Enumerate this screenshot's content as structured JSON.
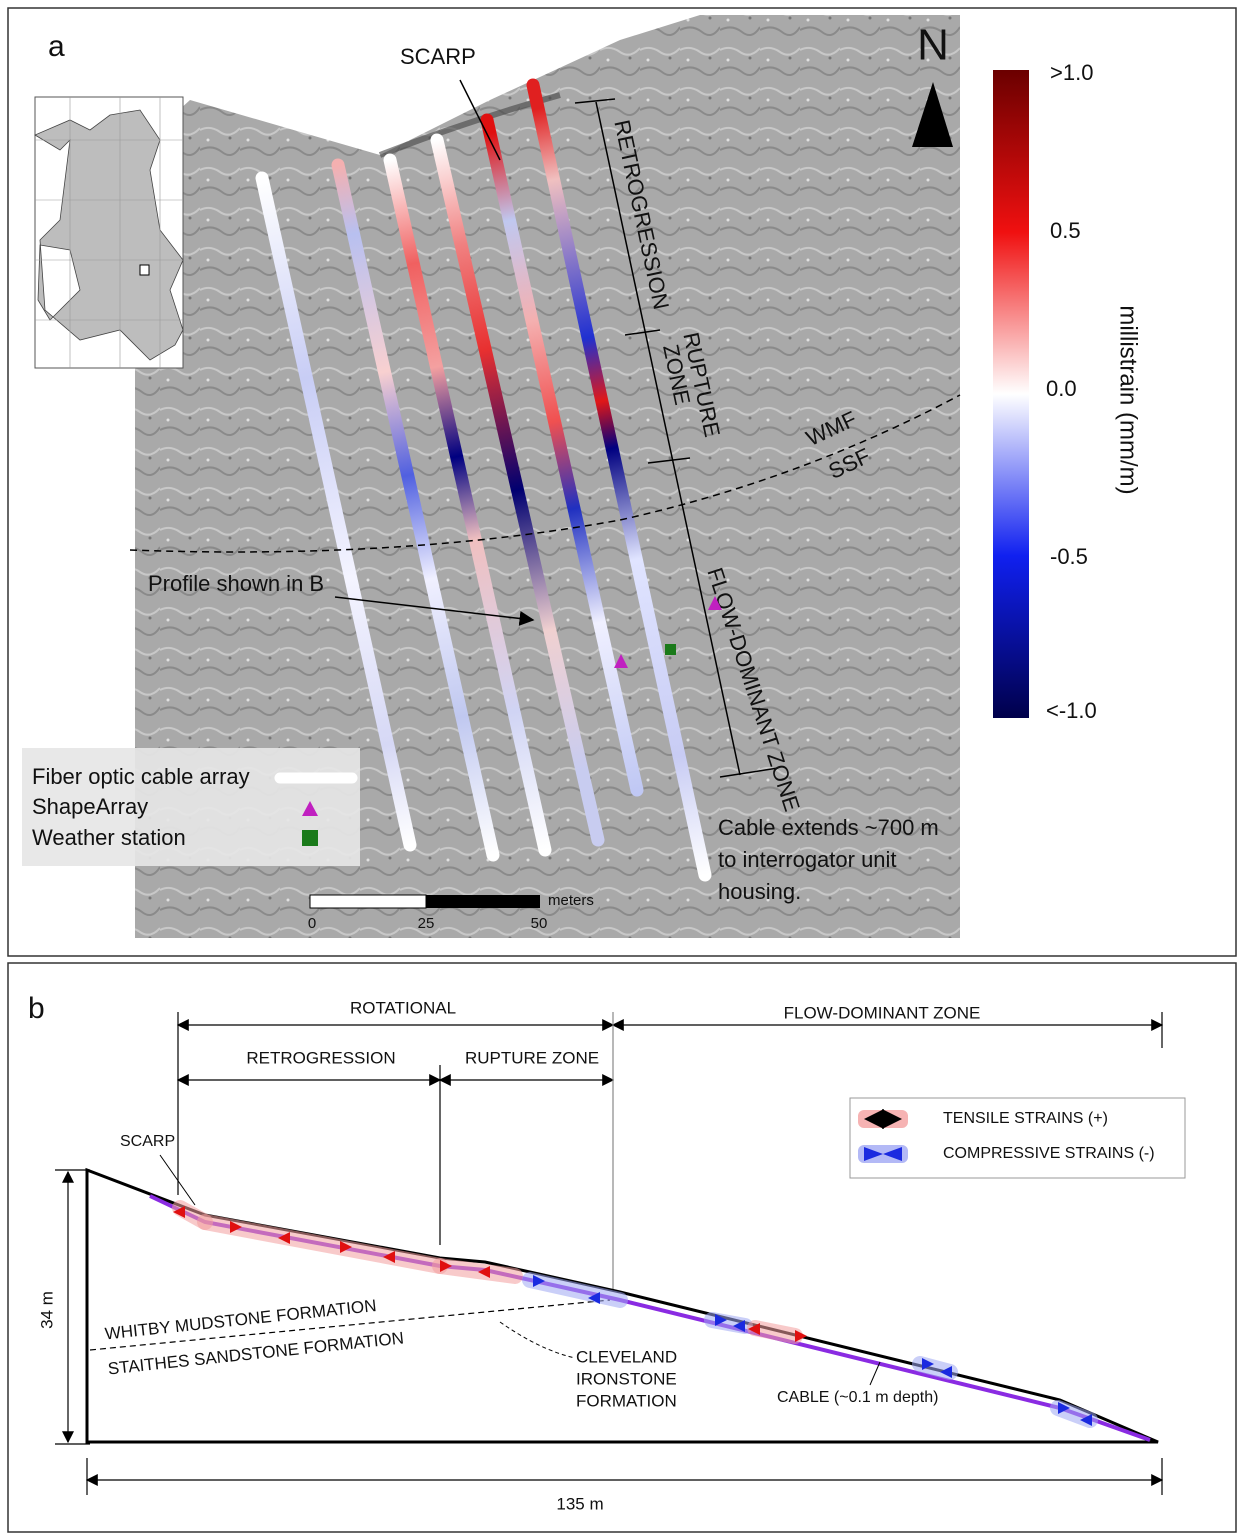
{
  "panel_a": {
    "label": "a",
    "scarp": "SCARP",
    "north": "N",
    "retrogression": "RETROGRESSION",
    "rupture_zone": [
      "RUPTURE",
      "ZONE"
    ],
    "wmf": "WMF",
    "ssf": "SSF",
    "flow_dominant_zone": "FLOW-DOMINANT ZONE",
    "profile_note": "Profile shown in B",
    "legend": [
      "Fiber optic cable array",
      "ShapeArray",
      "Weather station"
    ],
    "cable_note": [
      "Cable extends ~700 m",
      "to interrogator unit",
      "housing."
    ],
    "scale_bar": {
      "unit": "meters",
      "labels": [
        "0",
        "25",
        "50"
      ]
    },
    "colorbar": {
      "title": "millistrain (mm/m)",
      "labels": [
        ">1.0",
        "0.5",
        "0.0",
        "-0.5",
        "<-1.0"
      ]
    }
  },
  "panel_b": {
    "label": "b",
    "rotational": "ROTATIONAL",
    "flow_dominant_zone": "FLOW-DOMINANT ZONE",
    "retrogression": "RETROGRESSION",
    "rupture_zone": "RUPTURE ZONE",
    "scarp": "SCARP",
    "legend": [
      "TENSILE STRAINS (+)",
      "COMPRESSIVE STRAINS (-)"
    ],
    "height": "34 m",
    "whitby": "WHITBY MUDSTONE FORMATION",
    "staithes": "STAITHES SANDSTONE FORMATION",
    "cleveland": [
      "CLEVELAND",
      "IRONSTONE",
      "FORMATION"
    ],
    "cable": "CABLE (~0.1 m depth)",
    "length": "135 m"
  }
}
